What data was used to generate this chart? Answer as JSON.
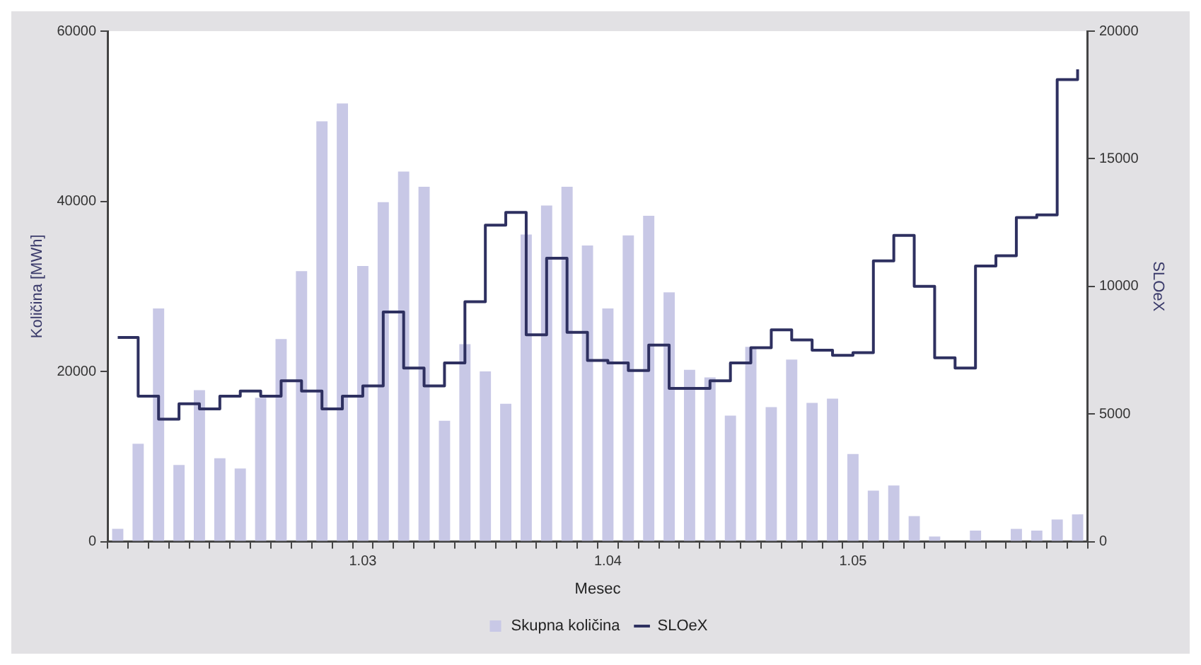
{
  "chart_data": {
    "type": "bar",
    "xlabel": "Mesec",
    "ylabel": "Količina [MWh]",
    "y2label": "SLOeX",
    "categories": [
      null,
      null,
      null,
      null,
      null,
      null,
      null,
      null,
      null,
      null,
      null,
      null,
      "1.03",
      null,
      null,
      null,
      null,
      null,
      null,
      null,
      null,
      null,
      null,
      null,
      "1.04",
      null,
      null,
      null,
      null,
      null,
      null,
      null,
      null,
      null,
      null,
      null,
      "1.05",
      null,
      null,
      null,
      null,
      null,
      null,
      null,
      null,
      null,
      null,
      null
    ],
    "series": [
      {
        "name": "Skupna količina",
        "color": "#c8c8e6",
        "values": [
          1500,
          11500,
          27400,
          9000,
          17800,
          9800,
          8600,
          16900,
          23800,
          31800,
          49400,
          51500,
          32400,
          39900,
          43500,
          41700,
          14200,
          23200,
          20000,
          16200,
          36100,
          39500,
          41700,
          34800,
          27400,
          36000,
          38300,
          29300,
          20200,
          19300,
          14800,
          22900,
          15800,
          21400,
          16300,
          16800,
          10300,
          6000,
          6600,
          3000,
          600,
          null,
          1300,
          null,
          1500,
          1300,
          2600,
          3200
        ]
      },
      {
        "name": "SLOeX",
        "type": "step",
        "axis": "y2",
        "color": "#2e3060",
        "values": [
          8000,
          5700,
          4800,
          5400,
          5200,
          5700,
          5900,
          5700,
          6300,
          5900,
          5200,
          5700,
          6100,
          9000,
          6800,
          6100,
          7000,
          9400,
          12400,
          12900,
          8100,
          11100,
          8200,
          7100,
          7000,
          6700,
          7700,
          6000,
          6000,
          6300,
          7000,
          7600,
          8300,
          7900,
          7500,
          7300,
          7400,
          11000,
          12000,
          10000,
          7200,
          6800,
          10800,
          11200,
          12700,
          12800,
          18100,
          18500
        ]
      }
    ],
    "ylim": [
      0,
      60000
    ],
    "yticks": [
      0,
      20000,
      40000,
      60000
    ],
    "y2lim": [
      0,
      20000
    ],
    "y2ticks": [
      0,
      5000,
      10000,
      15000,
      20000
    ],
    "grid": false,
    "legend": "bottom"
  }
}
